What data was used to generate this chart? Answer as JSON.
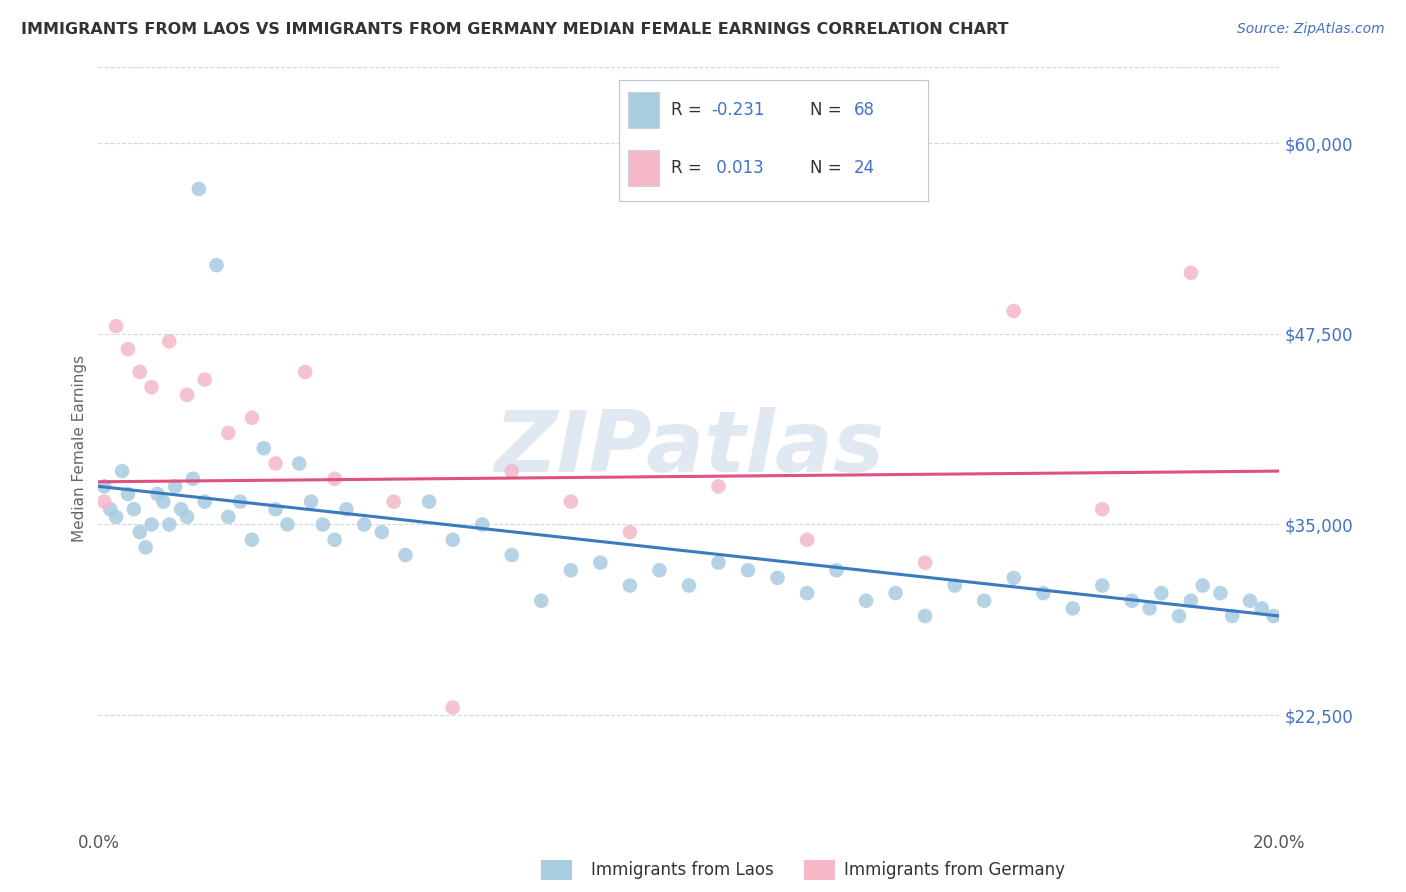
{
  "title": "IMMIGRANTS FROM LAOS VS IMMIGRANTS FROM GERMANY MEDIAN FEMALE EARNINGS CORRELATION CHART",
  "source_text": "Source: ZipAtlas.com",
  "ylabel": "Median Female Earnings",
  "xlim": [
    0.0,
    0.2
  ],
  "ylim": [
    15000,
    65000
  ],
  "yticks": [
    22500,
    35000,
    47500,
    60000
  ],
  "ytick_labels": [
    "$22,500",
    "$35,000",
    "$47,500",
    "$60,000"
  ],
  "xticks": [
    0.0,
    0.05,
    0.1,
    0.15,
    0.2
  ],
  "xtick_labels": [
    "0.0%",
    "",
    "",
    "",
    "20.0%"
  ],
  "watermark": "ZIPatlas",
  "blue_color": "#a8cce0",
  "pink_color": "#f4b8c8",
  "blue_line_color": "#3a7abf",
  "pink_line_color": "#e05080",
  "title_color": "#333333",
  "source_color": "#4472c4",
  "legend_text_color": "#4472c4",
  "axis_label_color": "#666666",
  "grid_color": "#d0d8e8",
  "laos_scatter_x": [
    0.001,
    0.002,
    0.003,
    0.004,
    0.005,
    0.006,
    0.007,
    0.008,
    0.009,
    0.01,
    0.011,
    0.012,
    0.013,
    0.014,
    0.015,
    0.016,
    0.017,
    0.018,
    0.02,
    0.022,
    0.024,
    0.026,
    0.028,
    0.03,
    0.032,
    0.034,
    0.036,
    0.038,
    0.04,
    0.042,
    0.045,
    0.048,
    0.052,
    0.056,
    0.06,
    0.065,
    0.07,
    0.075,
    0.08,
    0.085,
    0.09,
    0.095,
    0.1,
    0.105,
    0.11,
    0.115,
    0.12,
    0.125,
    0.13,
    0.135,
    0.14,
    0.145,
    0.15,
    0.155,
    0.16,
    0.165,
    0.17,
    0.175,
    0.178,
    0.18,
    0.183,
    0.185,
    0.187,
    0.19,
    0.192,
    0.195,
    0.197,
    0.199
  ],
  "laos_scatter_y": [
    37500,
    36000,
    35500,
    38500,
    37000,
    36000,
    34500,
    33500,
    35000,
    37000,
    36500,
    35000,
    37500,
    36000,
    35500,
    38000,
    57000,
    36500,
    52000,
    35500,
    36500,
    34000,
    40000,
    36000,
    35000,
    39000,
    36500,
    35000,
    34000,
    36000,
    35000,
    34500,
    33000,
    36500,
    34000,
    35000,
    33000,
    30000,
    32000,
    32500,
    31000,
    32000,
    31000,
    32500,
    32000,
    31500,
    30500,
    32000,
    30000,
    30500,
    29000,
    31000,
    30000,
    31500,
    30500,
    29500,
    31000,
    30000,
    29500,
    30500,
    29000,
    30000,
    31000,
    30500,
    29000,
    30000,
    29500,
    29000
  ],
  "germany_scatter_x": [
    0.001,
    0.003,
    0.005,
    0.007,
    0.009,
    0.012,
    0.015,
    0.018,
    0.022,
    0.026,
    0.03,
    0.035,
    0.04,
    0.05,
    0.06,
    0.07,
    0.08,
    0.09,
    0.105,
    0.12,
    0.14,
    0.155,
    0.17,
    0.185
  ],
  "germany_scatter_y": [
    36500,
    48000,
    46500,
    45000,
    44000,
    47000,
    43500,
    44500,
    41000,
    42000,
    39000,
    45000,
    38000,
    36500,
    23000,
    38500,
    36500,
    34500,
    37500,
    34000,
    32500,
    49000,
    36000,
    51500
  ],
  "laos_trendline_x": [
    0.0,
    0.2
  ],
  "laos_trendline_y": [
    37500,
    29000
  ],
  "germany_trendline_x": [
    0.0,
    0.2
  ],
  "germany_trendline_y": [
    37800,
    38500
  ],
  "bottom_legend_labels": [
    "Immigrants from Laos",
    "Immigrants from Germany"
  ]
}
